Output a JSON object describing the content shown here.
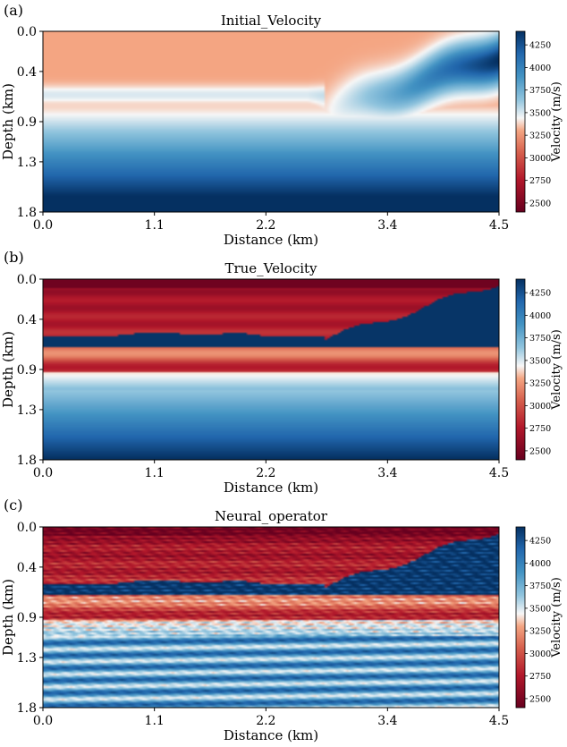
{
  "chart_data": [
    {
      "type": "heatmap",
      "panel_label": "(a)",
      "title": "Initial_Velocity",
      "xlabel": "Distance (km)",
      "ylabel": "Depth (km)",
      "xticks": [
        "0.0",
        "1.1",
        "2.2",
        "3.4",
        "4.5"
      ],
      "yticks": [
        "0.0",
        "0.4",
        "0.9",
        "1.3",
        "1.8"
      ],
      "xlim": [
        0,
        4.5
      ],
      "ylim": [
        0,
        1.8
      ],
      "colorbar_label": "Velocity (m/s)",
      "colorbar_ticks": [
        "2500",
        "2750",
        "3000",
        "3250",
        "3500",
        "3750",
        "4000",
        "4250"
      ],
      "colorbar_range": [
        2400,
        4400
      ],
      "style": "smooth"
    },
    {
      "type": "heatmap",
      "panel_label": "(b)",
      "title": "True_Velocity",
      "xlabel": "Distance (km)",
      "ylabel": "Depth (km)",
      "xticks": [
        "0.0",
        "1.1",
        "2.2",
        "3.4",
        "4.5"
      ],
      "yticks": [
        "0.0",
        "0.4",
        "0.9",
        "1.3",
        "1.8"
      ],
      "xlim": [
        0,
        4.5
      ],
      "ylim": [
        0,
        1.8
      ],
      "colorbar_label": "Velocity (m/s)",
      "colorbar_ticks": [
        "2500",
        "2750",
        "3000",
        "3250",
        "3500",
        "3750",
        "4000",
        "4250"
      ],
      "colorbar_range": [
        2400,
        4400
      ],
      "style": "true"
    },
    {
      "type": "heatmap",
      "panel_label": "(c)",
      "title": "Neural_operator",
      "xlabel": "Distance (km)",
      "ylabel": "Depth (km)",
      "xticks": [
        "0.0",
        "1.1",
        "2.2",
        "3.4",
        "4.5"
      ],
      "yticks": [
        "0.0",
        "0.4",
        "0.9",
        "1.3",
        "1.8"
      ],
      "xlim": [
        0,
        4.5
      ],
      "ylim": [
        0,
        1.8
      ],
      "colorbar_label": "Velocity (m/s)",
      "colorbar_ticks": [
        "2500",
        "2750",
        "3000",
        "3250",
        "3500",
        "3750",
        "4000",
        "4250"
      ],
      "colorbar_range": [
        2400,
        4400
      ],
      "style": "noisy"
    }
  ],
  "colors": {
    "low": "#67001f",
    "mid_low": "#d6604d",
    "mid": "#f7f7f7",
    "mid_high": "#4393c3",
    "high": "#053061"
  }
}
